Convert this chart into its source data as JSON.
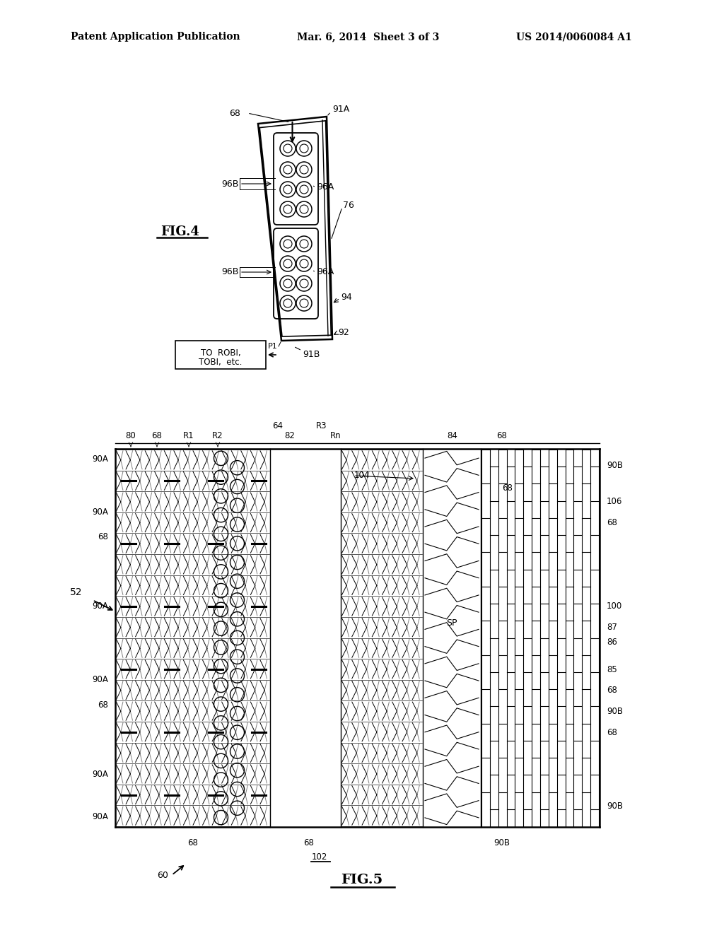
{
  "bg_color": "#ffffff",
  "line_color": "#000000",
  "header_left": "Patent Application Publication",
  "header_mid": "Mar. 6, 2014  Sheet 3 of 3",
  "header_right": "US 2014/0060084 A1"
}
